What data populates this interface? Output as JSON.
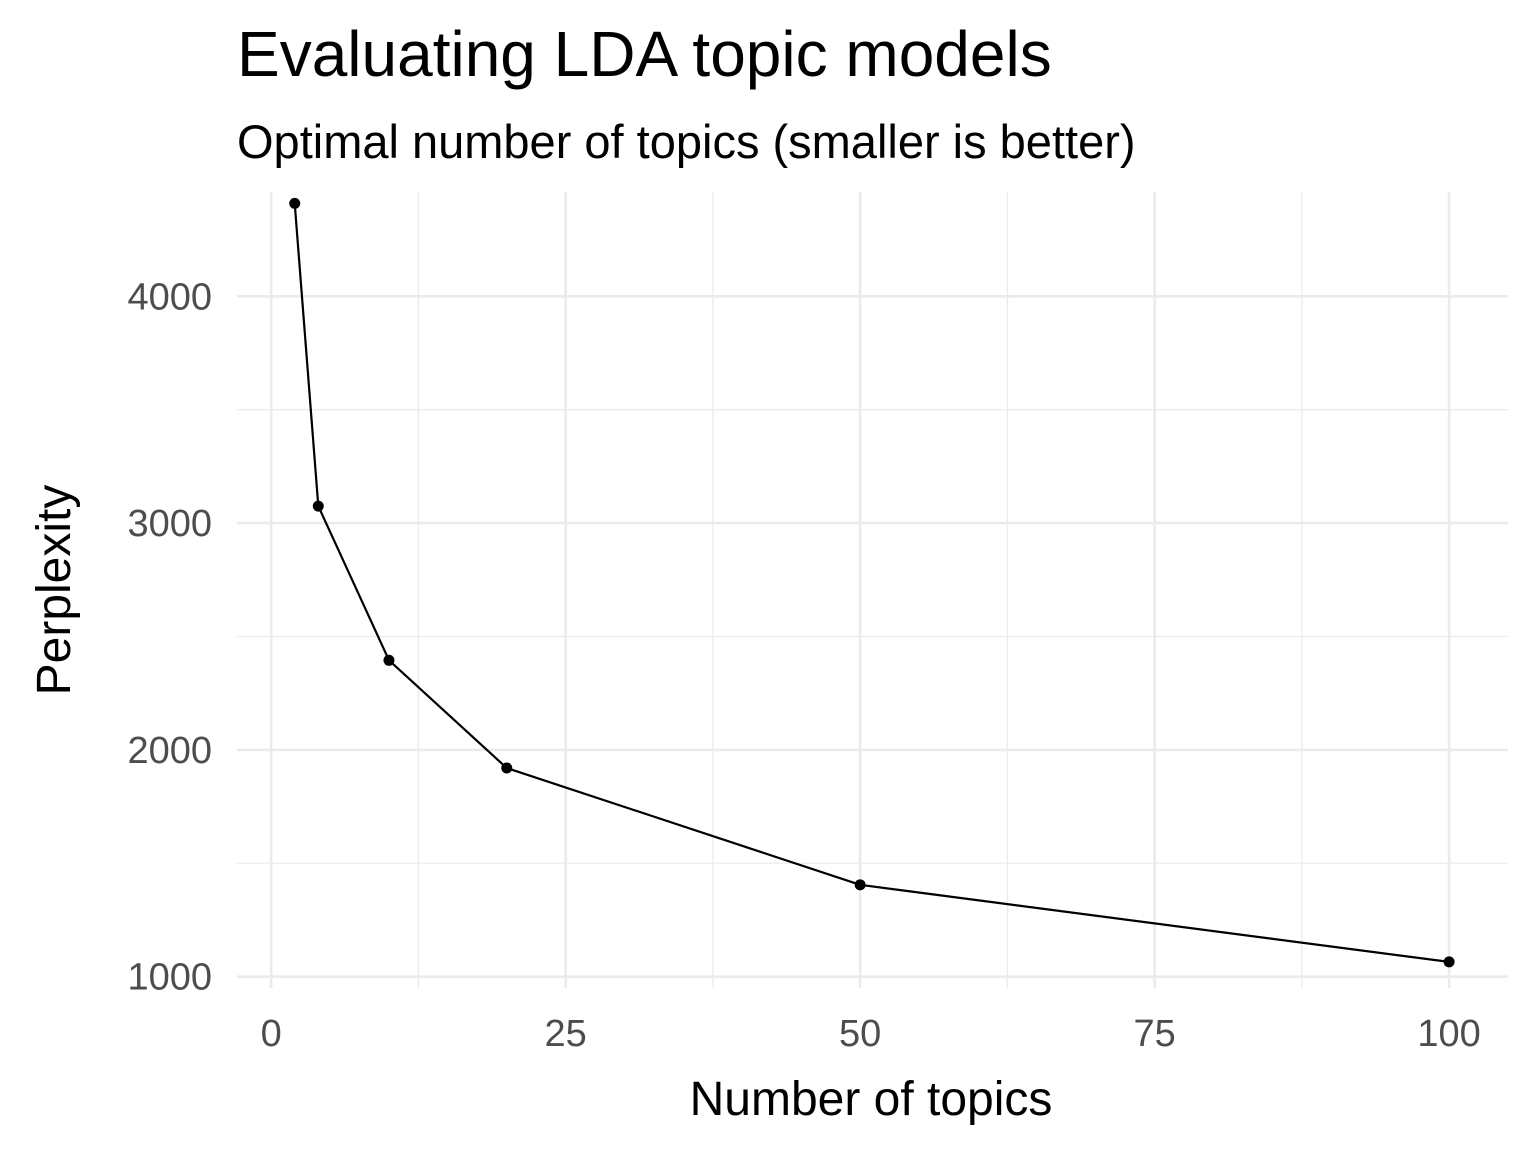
{
  "chart_data": {
    "type": "line",
    "title": "Evaluating LDA topic models",
    "subtitle": "Optimal number of topics (smaller is better)",
    "xlabel": "Number of topics",
    "ylabel": "Perplexity",
    "x": [
      2,
      4,
      10,
      20,
      50,
      100
    ],
    "y": [
      4410,
      3075,
      2395,
      1920,
      1405,
      1065
    ],
    "xlim": [
      -2.9,
      105
    ],
    "ylim": [
      950,
      4460
    ],
    "xticks": [
      0,
      25,
      50,
      75,
      100
    ],
    "xtick_labels": [
      "0",
      "25",
      "50",
      "75",
      "100"
    ],
    "xminor": [
      12.5,
      37.5,
      62.5,
      87.5
    ],
    "yticks": [
      1000,
      2000,
      3000,
      4000
    ],
    "ytick_labels": [
      "1000",
      "2000",
      "3000",
      "4000"
    ],
    "yminor": [
      1500,
      2500,
      3500
    ],
    "grid": true,
    "line_color": "#000000",
    "point_color": "#000000",
    "grid_color": "#ebebeb"
  }
}
